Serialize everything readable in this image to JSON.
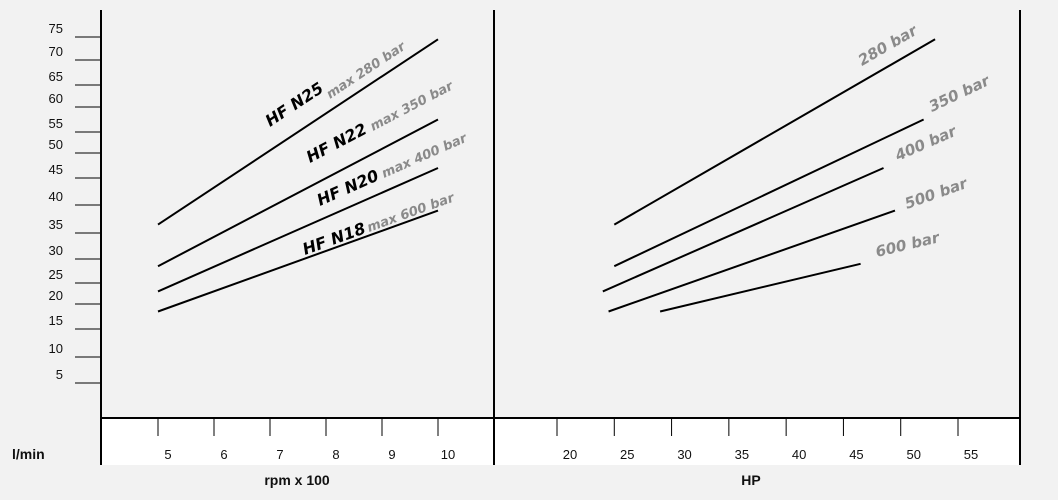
{
  "chart_data": [
    {
      "type": "line",
      "panel": "left",
      "ylabel": "l/min",
      "xlabel": "rpm x 100",
      "x_ticks": [
        "5",
        "6",
        "7",
        "8",
        "9",
        "10"
      ],
      "y_ticks": [
        "5",
        "10",
        "15",
        "20",
        "25",
        "30",
        "35",
        "40",
        "45",
        "50",
        "55",
        "60",
        "65",
        "70",
        "75"
      ],
      "xlim": [
        4,
        11
      ],
      "series": [
        {
          "name": "HF N25",
          "note": "max 280 bar",
          "x": [
            5,
            10
          ],
          "y": [
            36.5,
            74.5
          ]
        },
        {
          "name": "HF N22",
          "note": "max 350 bar",
          "x": [
            5,
            10
          ],
          "y": [
            28.5,
            57.5
          ]
        },
        {
          "name": "HF N20",
          "note": "max 400 bar",
          "x": [
            5,
            10
          ],
          "y": [
            23,
            47
          ]
        },
        {
          "name": "HF N18",
          "note": "max 600 bar",
          "x": [
            5,
            10
          ],
          "y": [
            18.5,
            39
          ]
        }
      ]
    },
    {
      "type": "line",
      "panel": "right",
      "xlabel": "HP",
      "x_ticks": [
        "20",
        "25",
        "30",
        "35",
        "40",
        "45",
        "50",
        "55"
      ],
      "xlim": [
        13,
        60
      ],
      "series": [
        {
          "name": "280 bar",
          "x": [
            25,
            53
          ],
          "y": [
            36.5,
            74.5
          ]
        },
        {
          "name": "350 bar",
          "x": [
            25,
            52
          ],
          "y": [
            28.5,
            57.5
          ]
        },
        {
          "name": "400 bar",
          "x": [
            24,
            48.5
          ],
          "y": [
            23,
            47
          ]
        },
        {
          "name": "500 bar",
          "x": [
            24.5,
            49.5
          ],
          "y": [
            18.5,
            39
          ]
        },
        {
          "name": "600 bar",
          "x": [
            29,
            46.5
          ],
          "y": [
            18.5,
            29
          ]
        }
      ]
    }
  ]
}
